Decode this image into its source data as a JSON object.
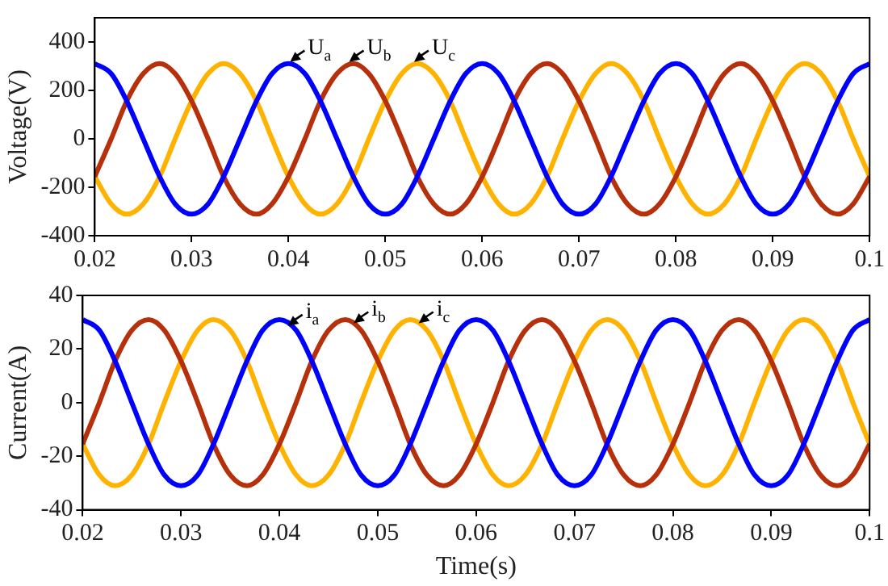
{
  "chart_data": [
    {
      "type": "line",
      "ylabel": "Voltage(V)",
      "x": [
        0.02,
        0.0217,
        0.0233,
        0.025,
        0.0267,
        0.0283,
        0.03,
        0.0317,
        0.0333,
        0.035,
        0.0367,
        0.0383,
        0.04,
        0.0417,
        0.0433,
        0.045,
        0.0467,
        0.0483,
        0.05,
        0.0517,
        0.0533,
        0.055,
        0.0567,
        0.0583,
        0.06,
        0.0617,
        0.0633,
        0.065,
        0.0667,
        0.0683,
        0.07,
        0.0717,
        0.0733,
        0.075,
        0.0767,
        0.0783,
        0.08,
        0.0817,
        0.0833,
        0.085,
        0.0867,
        0.0883,
        0.09,
        0.0917,
        0.0933,
        0.095,
        0.0967,
        0.0983,
        0.1
      ],
      "series": [
        {
          "color": "#0000ff",
          "values": [
            311,
            269,
            156,
            0,
            -156,
            -269,
            -311,
            -269,
            -156,
            0,
            156,
            269,
            311,
            269,
            156,
            0,
            -156,
            -269,
            -311,
            -269,
            -156,
            0,
            156,
            269,
            311,
            269,
            156,
            0,
            -156,
            -269,
            -311,
            -269,
            -156,
            0,
            156,
            269,
            311,
            269,
            156,
            0,
            -156,
            -269,
            -311,
            -269,
            -156,
            0,
            156,
            269,
            311
          ]
        },
        {
          "color": "#b5300b",
          "values": [
            -156,
            0,
            156,
            269,
            311,
            269,
            156,
            0,
            -156,
            -269,
            -311,
            -269,
            -156,
            0,
            156,
            269,
            311,
            269,
            156,
            0,
            -156,
            -269,
            -311,
            -269,
            -156,
            0,
            156,
            269,
            311,
            269,
            156,
            0,
            -156,
            -269,
            -311,
            -269,
            -156,
            0,
            156,
            269,
            311,
            269,
            156,
            0,
            -156,
            -269,
            -311,
            -269,
            -156
          ]
        },
        {
          "color": "#ffb300",
          "values": [
            -156,
            -269,
            -311,
            -269,
            -156,
            0,
            156,
            269,
            311,
            269,
            156,
            0,
            -156,
            -269,
            -311,
            -269,
            -156,
            0,
            156,
            269,
            311,
            269,
            156,
            0,
            -156,
            -269,
            -311,
            -269,
            -156,
            0,
            156,
            269,
            311,
            269,
            156,
            0,
            -156,
            -269,
            -311,
            -269,
            -156,
            0,
            156,
            269,
            311,
            269,
            156,
            0,
            -156
          ]
        }
      ],
      "xlim": [
        0.02,
        0.1
      ],
      "xticks": [
        0.02,
        0.03,
        0.04,
        0.05,
        0.06,
        0.07,
        0.08,
        0.09,
        0.1
      ],
      "ylim": [
        -400,
        500
      ],
      "yticks": [
        -400,
        -200,
        0,
        200,
        400
      ],
      "annotations": [
        {
          "text": "U$_{a}$",
          "x": 0.04,
          "y": 311
        },
        {
          "text": "U$_{b}$",
          "x": 0.0461,
          "y": 311
        },
        {
          "text": "U$_{c}$",
          "x": 0.0528,
          "y": 311
        }
      ],
      "legend": false,
      "grid": false
    },
    {
      "type": "line",
      "xlabel": "Time(s)",
      "ylabel": "Current(A)",
      "x": [
        0.02,
        0.0217,
        0.0233,
        0.025,
        0.0267,
        0.0283,
        0.03,
        0.0317,
        0.0333,
        0.035,
        0.0367,
        0.0383,
        0.04,
        0.0417,
        0.0433,
        0.045,
        0.0467,
        0.0483,
        0.05,
        0.0517,
        0.0533,
        0.055,
        0.0567,
        0.0583,
        0.06,
        0.0617,
        0.0633,
        0.065,
        0.0667,
        0.0683,
        0.07,
        0.0717,
        0.0733,
        0.075,
        0.0767,
        0.0783,
        0.08,
        0.0817,
        0.0833,
        0.085,
        0.0867,
        0.0883,
        0.09,
        0.0917,
        0.0933,
        0.095,
        0.0967,
        0.0983,
        0.1
      ],
      "series": [
        {
          "color": "#0000ff",
          "values": [
            31,
            27,
            15.5,
            0,
            -15.5,
            -27,
            -31,
            -27,
            -15.5,
            0,
            15.5,
            27,
            31,
            27,
            15.5,
            0,
            -15.5,
            -27,
            -31,
            -27,
            -15.5,
            0,
            15.5,
            27,
            31,
            27,
            15.5,
            0,
            -15.5,
            -27,
            -31,
            -27,
            -15.5,
            0,
            15.5,
            27,
            31,
            27,
            15.5,
            0,
            -15.5,
            -27,
            -31,
            -27,
            -15.5,
            0,
            15.5,
            27,
            31
          ]
        },
        {
          "color": "#b5300b",
          "values": [
            -15.5,
            0,
            15.5,
            27,
            31,
            27,
            15.5,
            0,
            -15.5,
            -27,
            -31,
            -27,
            -15.5,
            0,
            15.5,
            27,
            31,
            27,
            15.5,
            0,
            -15.5,
            -27,
            -31,
            -27,
            -15.5,
            0,
            15.5,
            27,
            31,
            27,
            15.5,
            0,
            -15.5,
            -27,
            -31,
            -27,
            -15.5,
            0,
            15.5,
            27,
            31,
            27,
            15.5,
            0,
            -15.5,
            -27,
            -31,
            -27,
            -15.5
          ]
        },
        {
          "color": "#ffb300",
          "values": [
            -15.5,
            -27,
            -31,
            -27,
            -15.5,
            0,
            15.5,
            27,
            31,
            27,
            15.5,
            0,
            -15.5,
            -27,
            -31,
            -27,
            -15.5,
            0,
            15.5,
            27,
            31,
            27,
            15.5,
            0,
            -15.5,
            -27,
            -31,
            -27,
            -15.5,
            0,
            15.5,
            27,
            31,
            27,
            15.5,
            0,
            -15.5,
            -27,
            -31,
            -27,
            -15.5,
            0,
            15.5,
            27,
            31,
            27,
            15.5,
            0,
            -15.5
          ]
        }
      ],
      "xlim": [
        0.02,
        0.1
      ],
      "xticks": [
        0.02,
        0.03,
        0.04,
        0.05,
        0.06,
        0.07,
        0.08,
        0.09,
        0.1
      ],
      "ylim": [
        -40,
        40
      ],
      "yticks": [
        -40,
        -20,
        0,
        20,
        40
      ],
      "annotations": [
        {
          "text": "i$_{a}$",
          "x": 0.0407,
          "y": 28
        },
        {
          "text": "i$_{b}$",
          "x": 0.0474,
          "y": 29
        },
        {
          "text": "i$_{c}$",
          "x": 0.054,
          "y": 29
        }
      ],
      "legend": false,
      "grid": false
    }
  ]
}
